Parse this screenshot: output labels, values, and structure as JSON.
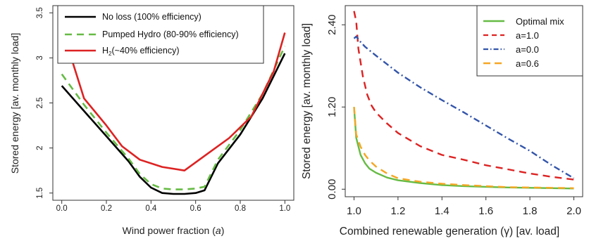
{
  "chart_data": [
    {
      "type": "line",
      "xlabel": "Wind power fraction (a)",
      "ylabel": "Stored energy [av. monthly load]",
      "xlim": [
        -0.04,
        1.04
      ],
      "ylim": [
        1.42,
        3.58
      ],
      "x_ticks": [
        0.0,
        0.2,
        0.4,
        0.6,
        0.8,
        1.0
      ],
      "x_tick_labels": [
        "0.0",
        "0.2",
        "0.4",
        "0.6",
        "0.8",
        "1.0"
      ],
      "y_ticks": [
        1.5,
        2.0,
        2.5,
        3.0,
        3.5
      ],
      "y_tick_labels": [
        "1.5",
        "2",
        "2.5",
        "3",
        "3.5"
      ],
      "legend_position": "top-left",
      "series": [
        {
          "name": "No loss (100% efficiency)",
          "color": "#000000",
          "dash": "solid",
          "x": [
            0.0,
            0.1,
            0.2,
            0.3,
            0.35,
            0.4,
            0.45,
            0.5,
            0.55,
            0.6,
            0.64,
            0.7,
            0.8,
            0.9,
            1.0
          ],
          "y": [
            2.69,
            2.41,
            2.13,
            1.85,
            1.68,
            1.56,
            1.5,
            1.49,
            1.49,
            1.5,
            1.53,
            1.83,
            2.15,
            2.55,
            3.05
          ]
        },
        {
          "name": "Pumped Hydro (80-90% efficiency)",
          "color": "#66bb44",
          "dash": "dashed",
          "x": [
            0.0,
            0.1,
            0.2,
            0.3,
            0.35,
            0.4,
            0.45,
            0.5,
            0.55,
            0.6,
            0.64,
            0.7,
            0.8,
            0.9,
            1.0
          ],
          "y": [
            2.82,
            2.48,
            2.17,
            1.88,
            1.71,
            1.6,
            1.55,
            1.54,
            1.54,
            1.55,
            1.57,
            1.87,
            2.2,
            2.6,
            3.13
          ]
        },
        {
          "name": "H2(~40% efficiency)",
          "color": "#dd2222",
          "dash": "solid",
          "x": [
            0.03,
            0.1,
            0.2,
            0.27,
            0.35,
            0.45,
            0.55,
            0.65,
            0.75,
            0.85,
            0.95,
            1.0
          ],
          "y": [
            3.1,
            2.55,
            2.25,
            2.02,
            1.87,
            1.79,
            1.75,
            1.93,
            2.11,
            2.35,
            2.85,
            3.28
          ]
        }
      ]
    },
    {
      "type": "line",
      "xlabel": "Combined renewable generation (γ) [av. load]",
      "ylabel": "Stored energy [av. monthly load]",
      "xlim": [
        0.96,
        2.04
      ],
      "ylim": [
        -0.11,
        2.68
      ],
      "x_ticks": [
        1.0,
        1.2,
        1.4,
        1.6,
        1.8,
        2.0
      ],
      "x_tick_labels": [
        "1.0",
        "1.2",
        "1.4",
        "1.6",
        "1.8",
        "2.0"
      ],
      "y_ticks": [
        0.0,
        1.2,
        2.4
      ],
      "y_tick_labels": [
        "0.00",
        "1.20",
        "2.40"
      ],
      "legend_position": "top-right",
      "series": [
        {
          "name": "Optimal mix",
          "color": "#66bb44",
          "dash": "solid",
          "x": [
            1.0,
            1.01,
            1.03,
            1.05,
            1.07,
            1.1,
            1.15,
            1.2,
            1.3,
            1.4,
            1.5,
            1.6,
            1.7,
            1.8,
            1.9,
            2.0
          ],
          "y": [
            1.2,
            0.75,
            0.5,
            0.38,
            0.3,
            0.24,
            0.17,
            0.13,
            0.09,
            0.06,
            0.045,
            0.035,
            0.025,
            0.02,
            0.015,
            0.01
          ]
        },
        {
          "name": "a=1.0",
          "color": "#dd2222",
          "dash": "dashed",
          "x": [
            1.0,
            1.01,
            1.02,
            1.04,
            1.06,
            1.08,
            1.1,
            1.15,
            1.2,
            1.3,
            1.4,
            1.5,
            1.6,
            1.7,
            1.8,
            1.9,
            2.0
          ],
          "y": [
            2.6,
            2.45,
            2.05,
            1.65,
            1.38,
            1.22,
            1.12,
            0.96,
            0.82,
            0.63,
            0.5,
            0.43,
            0.35,
            0.29,
            0.23,
            0.18,
            0.14
          ]
        },
        {
          "name": "a=0.0",
          "color": "#3355aa",
          "dash": "dashdot",
          "x": [
            1.0,
            1.01,
            1.03,
            1.05,
            1.1,
            1.2,
            1.3,
            1.4,
            1.5,
            1.6,
            1.7,
            1.8,
            1.9,
            2.0
          ],
          "y": [
            2.2,
            2.23,
            2.15,
            2.08,
            1.95,
            1.7,
            1.49,
            1.3,
            1.12,
            0.93,
            0.74,
            0.56,
            0.35,
            0.16
          ]
        },
        {
          "name": "a=0.6",
          "color": "#f5a623",
          "dash": "dashed",
          "x": [
            1.0,
            1.01,
            1.03,
            1.05,
            1.07,
            1.1,
            1.15,
            1.2,
            1.3,
            1.4,
            1.5,
            1.6,
            1.7,
            1.8,
            1.9,
            2.0
          ],
          "y": [
            1.2,
            0.8,
            0.62,
            0.5,
            0.42,
            0.33,
            0.23,
            0.16,
            0.11,
            0.08,
            0.06,
            0.045,
            0.03,
            0.025,
            0.02,
            0.015
          ]
        }
      ]
    }
  ],
  "legend_left": {
    "no_loss": "No loss (100% efficiency)",
    "pumped_hydro": "Pumped Hydro (80-90% efficiency)",
    "h2_prefix": "H",
    "h2_sub": "2",
    "h2_suffix": "(~40% efficiency)"
  },
  "legend_right": {
    "optimal": "Optimal mix",
    "a10": "a=1.0",
    "a00": "a=0.0",
    "a06": "a=0.6"
  },
  "left_axis": {
    "xlabel_prefix": "Wind power fraction (",
    "xlabel_var": "a",
    "xlabel_suffix": ")",
    "ylabel": "Stored energy [av. monthly load]"
  },
  "right_axis": {
    "xlabel": "Combined renewable generation (γ) [av. load]",
    "ylabel": "Stored energy [av. monthly load]"
  }
}
